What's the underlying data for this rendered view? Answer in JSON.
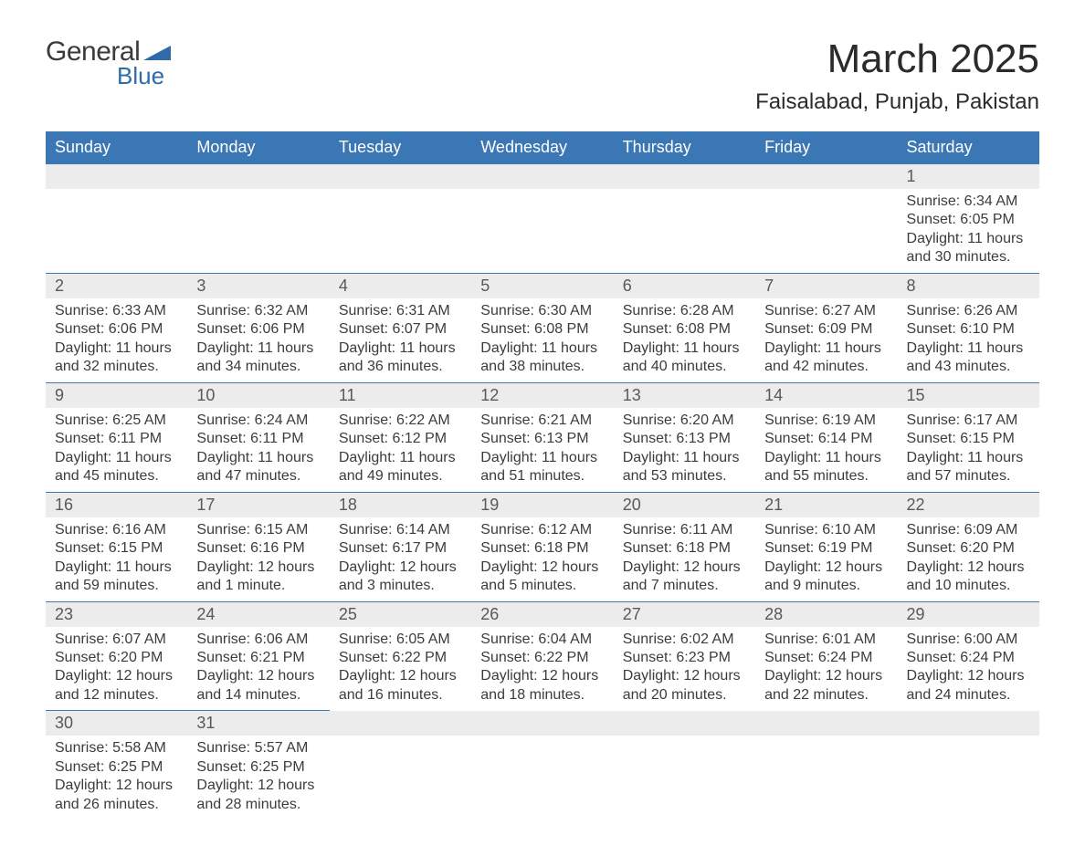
{
  "colors": {
    "brand_blue": "#3b76b5",
    "accent_blue": "#2f6ba8",
    "background": "#ffffff",
    "text": "#3a3a3a",
    "daynum_bg": "#ececec",
    "daynum_text": "#595959",
    "row_divider": "#3b76b5"
  },
  "typography": {
    "base_family": "Arial, Helvetica, sans-serif",
    "month_title_fontsize": 44,
    "location_fontsize": 24,
    "dayheader_fontsize": 18,
    "daynum_fontsize": 18,
    "body_fontsize": 16
  },
  "logo": {
    "general_text": "General",
    "blue_text": "Blue",
    "triangle_color": "#2f6ba8"
  },
  "header": {
    "month_year": "March 2025",
    "location": "Faisalabad, Punjab, Pakistan"
  },
  "calendar": {
    "columns": [
      "Sunday",
      "Monday",
      "Tuesday",
      "Wednesday",
      "Thursday",
      "Friday",
      "Saturday"
    ],
    "first_weekday_index": 6,
    "days": [
      {
        "n": 1,
        "sunrise": "6:34 AM",
        "sunset": "6:05 PM",
        "daylight": "11 hours and 30 minutes."
      },
      {
        "n": 2,
        "sunrise": "6:33 AM",
        "sunset": "6:06 PM",
        "daylight": "11 hours and 32 minutes."
      },
      {
        "n": 3,
        "sunrise": "6:32 AM",
        "sunset": "6:06 PM",
        "daylight": "11 hours and 34 minutes."
      },
      {
        "n": 4,
        "sunrise": "6:31 AM",
        "sunset": "6:07 PM",
        "daylight": "11 hours and 36 minutes."
      },
      {
        "n": 5,
        "sunrise": "6:30 AM",
        "sunset": "6:08 PM",
        "daylight": "11 hours and 38 minutes."
      },
      {
        "n": 6,
        "sunrise": "6:28 AM",
        "sunset": "6:08 PM",
        "daylight": "11 hours and 40 minutes."
      },
      {
        "n": 7,
        "sunrise": "6:27 AM",
        "sunset": "6:09 PM",
        "daylight": "11 hours and 42 minutes."
      },
      {
        "n": 8,
        "sunrise": "6:26 AM",
        "sunset": "6:10 PM",
        "daylight": "11 hours and 43 minutes."
      },
      {
        "n": 9,
        "sunrise": "6:25 AM",
        "sunset": "6:11 PM",
        "daylight": "11 hours and 45 minutes."
      },
      {
        "n": 10,
        "sunrise": "6:24 AM",
        "sunset": "6:11 PM",
        "daylight": "11 hours and 47 minutes."
      },
      {
        "n": 11,
        "sunrise": "6:22 AM",
        "sunset": "6:12 PM",
        "daylight": "11 hours and 49 minutes."
      },
      {
        "n": 12,
        "sunrise": "6:21 AM",
        "sunset": "6:13 PM",
        "daylight": "11 hours and 51 minutes."
      },
      {
        "n": 13,
        "sunrise": "6:20 AM",
        "sunset": "6:13 PM",
        "daylight": "11 hours and 53 minutes."
      },
      {
        "n": 14,
        "sunrise": "6:19 AM",
        "sunset": "6:14 PM",
        "daylight": "11 hours and 55 minutes."
      },
      {
        "n": 15,
        "sunrise": "6:17 AM",
        "sunset": "6:15 PM",
        "daylight": "11 hours and 57 minutes."
      },
      {
        "n": 16,
        "sunrise": "6:16 AM",
        "sunset": "6:15 PM",
        "daylight": "11 hours and 59 minutes."
      },
      {
        "n": 17,
        "sunrise": "6:15 AM",
        "sunset": "6:16 PM",
        "daylight": "12 hours and 1 minute."
      },
      {
        "n": 18,
        "sunrise": "6:14 AM",
        "sunset": "6:17 PM",
        "daylight": "12 hours and 3 minutes."
      },
      {
        "n": 19,
        "sunrise": "6:12 AM",
        "sunset": "6:18 PM",
        "daylight": "12 hours and 5 minutes."
      },
      {
        "n": 20,
        "sunrise": "6:11 AM",
        "sunset": "6:18 PM",
        "daylight": "12 hours and 7 minutes."
      },
      {
        "n": 21,
        "sunrise": "6:10 AM",
        "sunset": "6:19 PM",
        "daylight": "12 hours and 9 minutes."
      },
      {
        "n": 22,
        "sunrise": "6:09 AM",
        "sunset": "6:20 PM",
        "daylight": "12 hours and 10 minutes."
      },
      {
        "n": 23,
        "sunrise": "6:07 AM",
        "sunset": "6:20 PM",
        "daylight": "12 hours and 12 minutes."
      },
      {
        "n": 24,
        "sunrise": "6:06 AM",
        "sunset": "6:21 PM",
        "daylight": "12 hours and 14 minutes."
      },
      {
        "n": 25,
        "sunrise": "6:05 AM",
        "sunset": "6:22 PM",
        "daylight": "12 hours and 16 minutes."
      },
      {
        "n": 26,
        "sunrise": "6:04 AM",
        "sunset": "6:22 PM",
        "daylight": "12 hours and 18 minutes."
      },
      {
        "n": 27,
        "sunrise": "6:02 AM",
        "sunset": "6:23 PM",
        "daylight": "12 hours and 20 minutes."
      },
      {
        "n": 28,
        "sunrise": "6:01 AM",
        "sunset": "6:24 PM",
        "daylight": "12 hours and 22 minutes."
      },
      {
        "n": 29,
        "sunrise": "6:00 AM",
        "sunset": "6:24 PM",
        "daylight": "12 hours and 24 minutes."
      },
      {
        "n": 30,
        "sunrise": "5:58 AM",
        "sunset": "6:25 PM",
        "daylight": "12 hours and 26 minutes."
      },
      {
        "n": 31,
        "sunrise": "5:57 AM",
        "sunset": "6:25 PM",
        "daylight": "12 hours and 28 minutes."
      }
    ],
    "labels": {
      "sunrise_prefix": "Sunrise: ",
      "sunset_prefix": "Sunset: ",
      "daylight_prefix": "Daylight: "
    }
  }
}
